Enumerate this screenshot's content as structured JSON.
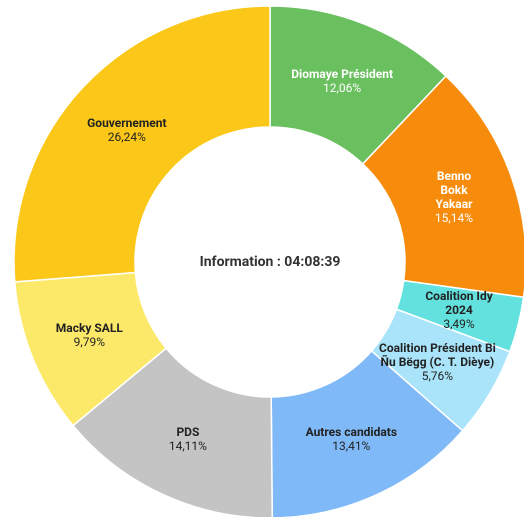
{
  "chart_data": {
    "type": "donut",
    "center_text": "Information : 04:08:39",
    "categories": [
      "Diomaye Président",
      "Benno Bokk Yakaar",
      "Coalition Idy 2024",
      "Coalition Président Bi Ñu Bëgg (C. T. Dièye)",
      "Autres candidats",
      "PDS",
      "Macky SALL",
      "Gouvernement"
    ],
    "values": [
      12.06,
      15.14,
      3.49,
      5.76,
      13.41,
      14.11,
      9.79,
      26.24
    ],
    "value_labels": [
      "12,06%",
      "15,14%",
      "3,49%",
      "5,76%",
      "13,41%",
      "14,11%",
      "9,79%",
      "26,24%"
    ],
    "colors": [
      "#6abf5e",
      "#f68b0c",
      "#63e1df",
      "#a9e4fb",
      "#80b9f7",
      "#c4c4c4",
      "#fce96a",
      "#fbc81a"
    ]
  }
}
